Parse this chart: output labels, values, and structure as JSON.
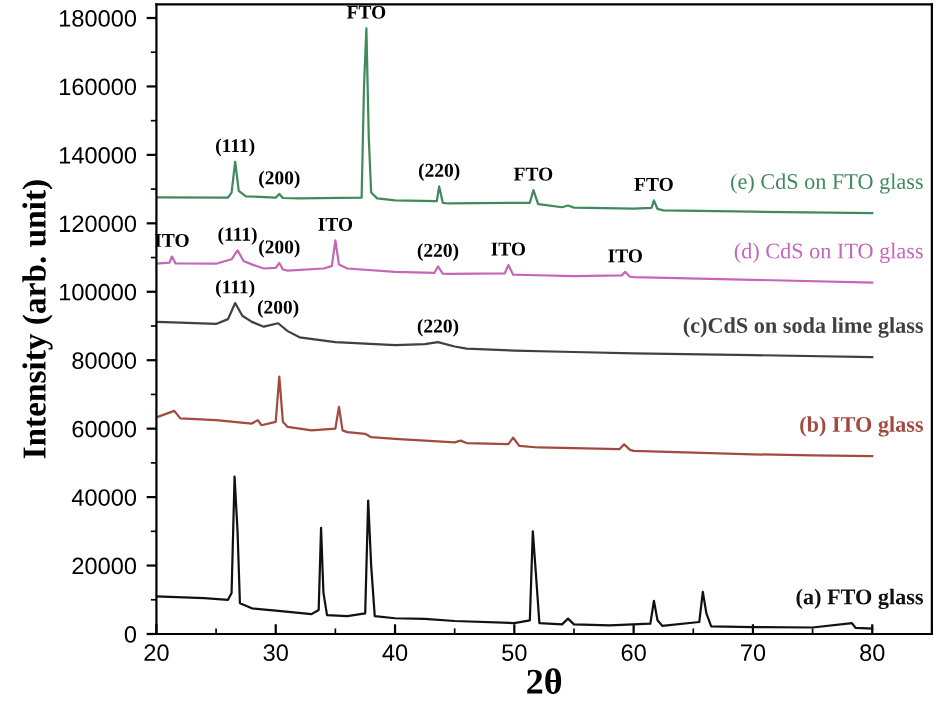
{
  "chart_data": {
    "type": "line",
    "xlabel": "2θ",
    "ylabel": "Intensity (arb. unit)",
    "xlim": [
      20,
      85
    ],
    "ylim": [
      0,
      184000
    ],
    "xticks": [
      20,
      30,
      40,
      50,
      60,
      70,
      80
    ],
    "yticks": [
      0,
      20000,
      40000,
      60000,
      80000,
      100000,
      120000,
      140000,
      160000,
      180000
    ],
    "grid": false,
    "legend": false,
    "series": [
      {
        "name": "(e) CdS on FTO glass",
        "color": "#3f8a5c",
        "x": [
          20,
          26,
          26.3,
          26.6,
          26.9,
          27.5,
          30,
          30.3,
          30.6,
          32,
          37.2,
          37.4,
          37.6,
          37.8,
          38.0,
          38.5,
          40,
          43.5,
          43.7,
          44.0,
          44.5,
          51.3,
          51.6,
          52,
          52.5,
          54,
          54.5,
          55,
          60,
          61.5,
          61.7,
          62,
          62.5,
          70,
          80
        ],
        "values": [
          127600,
          127500,
          129000,
          138000,
          129500,
          127900,
          127500,
          128600,
          127400,
          127300,
          127500,
          160000,
          177000,
          145000,
          129000,
          127300,
          126700,
          126500,
          130800,
          126000,
          125800,
          126000,
          129700,
          125600,
          125400,
          124700,
          125200,
          124600,
          124300,
          124500,
          126700,
          124200,
          123800,
          123400,
          123000
        ]
      },
      {
        "name": "(d) CdS on ITO glass",
        "color": "#c467b8",
        "x": [
          20,
          21.1,
          21.3,
          21.6,
          25,
          26.3,
          26.8,
          27.3,
          28,
          29,
          30.0,
          30.3,
          30.6,
          31,
          34,
          34.7,
          35.0,
          35.3,
          36,
          40,
          43.3,
          43.6,
          44,
          44.5,
          49.2,
          49.5,
          49.9,
          51,
          55,
          59.0,
          59.3,
          59.7,
          60,
          70,
          80
        ],
        "values": [
          108200,
          108500,
          110300,
          108300,
          108200,
          109500,
          112100,
          109000,
          108000,
          106800,
          107000,
          108400,
          106500,
          106200,
          106800,
          107500,
          115000,
          108000,
          106800,
          105800,
          105500,
          107400,
          105300,
          105200,
          105400,
          107800,
          105000,
          104900,
          104600,
          104800,
          105800,
          104400,
          104300,
          103500,
          102700
        ]
      },
      {
        "name": "(c)CdS on soda lime glass",
        "color": "#404040",
        "x": [
          20,
          22,
          25,
          26,
          26.6,
          27.2,
          28,
          29,
          30.2,
          31,
          32,
          35,
          40,
          42.5,
          43.6,
          45,
          46,
          50,
          55,
          60,
          70,
          80
        ],
        "values": [
          91200,
          91000,
          90600,
          92000,
          96700,
          93000,
          91200,
          89800,
          90800,
          88500,
          86700,
          85300,
          84400,
          84700,
          85300,
          84000,
          83400,
          82800,
          82400,
          82000,
          81500,
          80900
        ]
      },
      {
        "name": "(b) ITO glass",
        "color": "#a34a3f",
        "x": [
          20,
          21.5,
          22,
          25,
          28,
          28.5,
          28.8,
          30.0,
          30.3,
          30.6,
          31,
          33,
          35.0,
          35.3,
          35.6,
          36,
          37.5,
          38,
          40,
          45,
          45.5,
          46,
          49.5,
          49.9,
          50.4,
          52,
          55,
          58.8,
          59.2,
          59.7,
          60,
          65,
          70,
          75,
          80
        ],
        "values": [
          63300,
          65200,
          63000,
          62500,
          61500,
          62500,
          61000,
          62000,
          75200,
          62000,
          60500,
          59500,
          60000,
          66400,
          59500,
          59000,
          58500,
          57500,
          57000,
          56000,
          56500,
          55800,
          55500,
          57400,
          55000,
          54500,
          54300,
          54000,
          55400,
          53800,
          53500,
          53000,
          52500,
          52200,
          52000
        ]
      },
      {
        "name": "(a) FTO glass",
        "color": "#111111",
        "x": [
          20,
          24,
          26,
          26.3,
          26.55,
          26.8,
          27,
          28,
          30,
          33,
          33.6,
          33.8,
          34.0,
          34.3,
          36,
          37.5,
          37.75,
          38.0,
          38.3,
          40,
          42.5,
          45,
          50,
          51.3,
          51.55,
          51.8,
          52.1,
          54,
          54.5,
          55,
          58,
          61.4,
          61.7,
          62,
          62.4,
          65.5,
          65.8,
          66.1,
          66.5,
          70,
          75,
          78.3,
          78.6,
          80
        ],
        "values": [
          11000,
          10500,
          10000,
          12000,
          46000,
          30000,
          9000,
          7500,
          6800,
          5800,
          7000,
          31000,
          12000,
          5500,
          5200,
          6000,
          39000,
          20000,
          5200,
          4600,
          4400,
          3800,
          3200,
          4000,
          30000,
          18000,
          3200,
          2800,
          4500,
          2800,
          2500,
          3000,
          9700,
          4000,
          2400,
          3500,
          12300,
          6000,
          2200,
          2000,
          1900,
          3200,
          1800,
          1600
        ]
      }
    ],
    "annotations": [
      {
        "text": "(111)",
        "x": 26.6,
        "y": 138000
      },
      {
        "text": "(200)",
        "x": 30.3,
        "y": 128600
      },
      {
        "text": "FTO",
        "x": 37.6,
        "y": 177000
      },
      {
        "text": "(220)",
        "x": 43.7,
        "y": 130800
      },
      {
        "text": "FTO",
        "x": 51.6,
        "y": 129700
      },
      {
        "text": "FTO",
        "x": 61.7,
        "y": 126700
      },
      {
        "text": "ITO",
        "x": 21.3,
        "y": 110300
      },
      {
        "text": "(111)",
        "x": 26.8,
        "y": 112100
      },
      {
        "text": "(200)",
        "x": 30.3,
        "y": 108400
      },
      {
        "text": "ITO",
        "x": 35.0,
        "y": 115000
      },
      {
        "text": "(220)",
        "x": 43.6,
        "y": 107400
      },
      {
        "text": "ITO",
        "x": 49.5,
        "y": 107800
      },
      {
        "text": "ITO",
        "x": 59.3,
        "y": 105800
      },
      {
        "text": "(111)",
        "x": 26.6,
        "y": 96700
      },
      {
        "text": "(200)",
        "x": 30.2,
        "y": 90800
      },
      {
        "text": "(220)",
        "x": 43.6,
        "y": 85300
      }
    ]
  }
}
